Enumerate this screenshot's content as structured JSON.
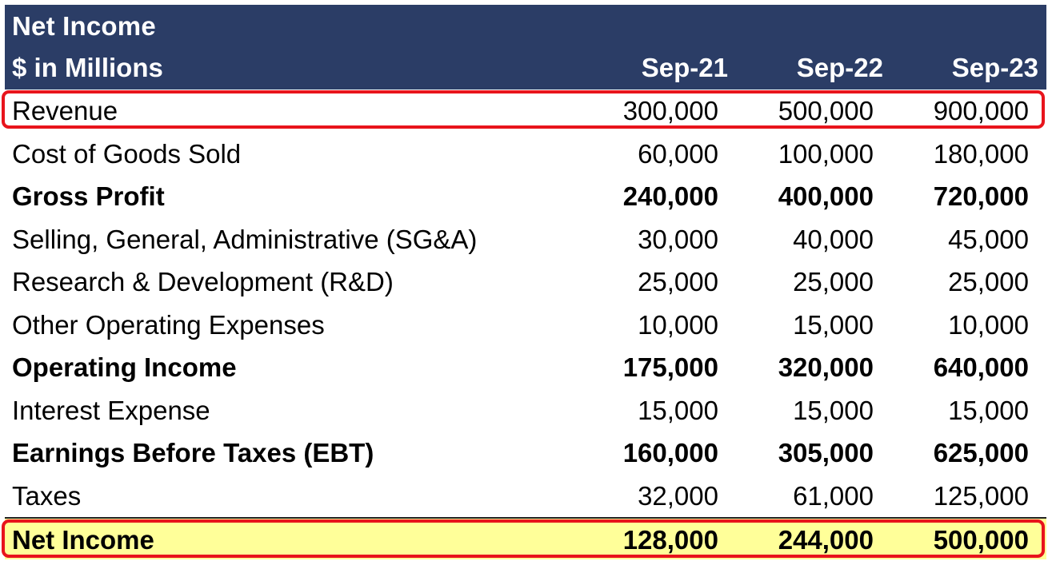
{
  "table": {
    "title": "Net Income",
    "subtitle": "$ in Millions",
    "columns": [
      "Sep-21",
      "Sep-22",
      "Sep-23"
    ],
    "rows": [
      {
        "label": "Revenue",
        "values": [
          "300,000",
          "500,000",
          "900,000"
        ],
        "bold": false,
        "highlighted": true
      },
      {
        "label": "Cost of Goods Sold",
        "values": [
          "60,000",
          "100,000",
          "180,000"
        ],
        "bold": false
      },
      {
        "label": "Gross Profit",
        "values": [
          "240,000",
          "400,000",
          "720,000"
        ],
        "bold": true
      },
      {
        "label": "Selling, General, Administrative (SG&A)",
        "values": [
          "30,000",
          "40,000",
          "45,000"
        ],
        "bold": false
      },
      {
        "label": "Research & Development (R&D)",
        "values": [
          "25,000",
          "25,000",
          "25,000"
        ],
        "bold": false
      },
      {
        "label": "Other Operating Expenses",
        "values": [
          "10,000",
          "15,000",
          "10,000"
        ],
        "bold": false
      },
      {
        "label": "Operating Income",
        "values": [
          "175,000",
          "320,000",
          "640,000"
        ],
        "bold": true
      },
      {
        "label": "Interest Expense",
        "values": [
          "15,000",
          "15,000",
          "15,000"
        ],
        "bold": false
      },
      {
        "label": "Earnings Before Taxes (EBT)",
        "values": [
          "160,000",
          "305,000",
          "625,000"
        ],
        "bold": true
      },
      {
        "label": "Taxes",
        "values": [
          "32,000",
          "61,000",
          "125,000"
        ],
        "bold": false
      },
      {
        "label": "Net Income",
        "values": [
          "128,000",
          "244,000",
          "500,000"
        ],
        "bold": true,
        "highlighted": true,
        "fill": "#ffff99"
      }
    ]
  },
  "colors": {
    "header_bg": "#2b3d66",
    "header_text": "#ffffff",
    "highlight_outline": "#e8141c",
    "net_income_fill": "#ffff99"
  }
}
